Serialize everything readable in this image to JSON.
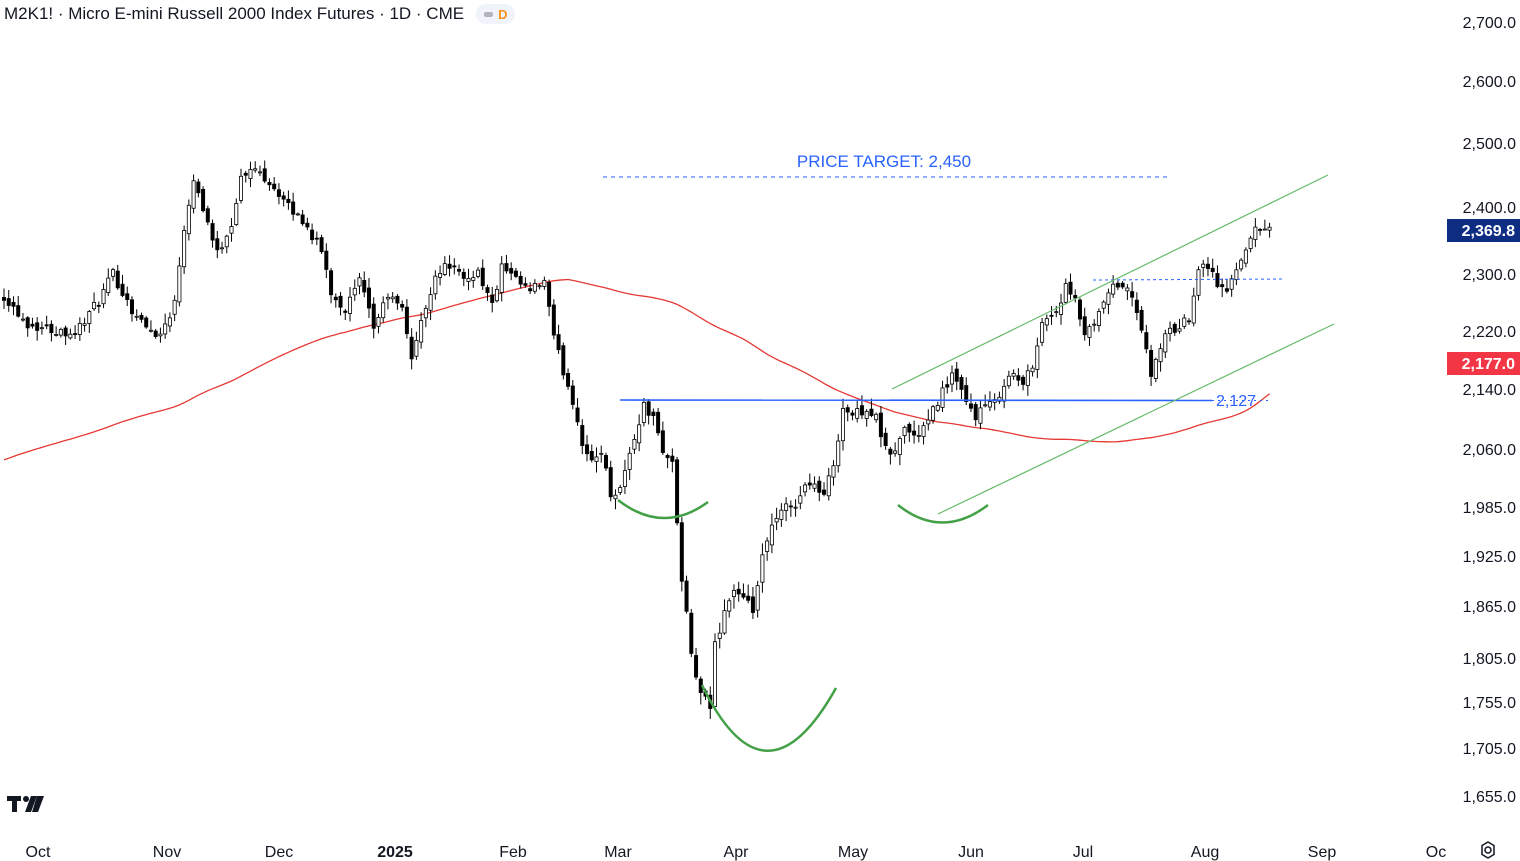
{
  "header": {
    "title": "M2K1! · Micro E-mini Russell 2000 Index Futures · 1D · CME",
    "badge_letter": "D"
  },
  "chart_data": {
    "type": "candlestick",
    "symbol": "M2K1!",
    "interval": "1D",
    "exchange": "CME",
    "y_ticks": [
      2700,
      2600,
      2500,
      2400,
      2300,
      2220,
      2140,
      2060,
      1985,
      1925,
      1865,
      1805,
      1755,
      1705,
      1655
    ],
    "y_tick_labels": [
      "2,700.0",
      "2,600.0",
      "2,500.0",
      "2,400.0",
      "2,300.0",
      "2,220.0",
      "2,140.0",
      "2,060.0",
      "1,985.0",
      "1,925.0",
      "1,865.0",
      "1,805.0",
      "1,755.0",
      "1,705.0",
      "1,655.0"
    ],
    "x_labels": [
      "Oct",
      "Nov",
      "Dec",
      "2025",
      "Feb",
      "Mar",
      "Apr",
      "May",
      "Jun",
      "Jul",
      "Aug",
      "Sep",
      "Oc"
    ],
    "last_price": 2369.8,
    "last_price_label": "2,369.8",
    "ma_value": 2177.0,
    "ma_label": "2,177.0",
    "neckline": {
      "value": 2127,
      "label": "2,127"
    },
    "price_target": {
      "value": 2450,
      "label": "PRICE TARGET: 2,450"
    },
    "pattern": "inverse head and shoulders",
    "colors": {
      "up": "#ffffff",
      "down": "#000000",
      "ma": "#e53935",
      "neckline": "#2962ff",
      "channel": "#66bb6a",
      "pattern": "#43a047",
      "last_price_bg": "#0d2c82",
      "ma_bg": "#f23645"
    },
    "anchors": [
      [
        0,
        2270
      ],
      [
        5,
        2230
      ],
      [
        10,
        2222
      ],
      [
        15,
        2218
      ],
      [
        20,
        2262
      ],
      [
        23,
        2300
      ],
      [
        27,
        2250
      ],
      [
        30,
        2225
      ],
      [
        33,
        2215
      ],
      [
        36,
        2260
      ],
      [
        38,
        2370
      ],
      [
        40,
        2445
      ],
      [
        42,
        2400
      ],
      [
        45,
        2330
      ],
      [
        48,
        2375
      ],
      [
        50,
        2445
      ],
      [
        53,
        2460
      ],
      [
        56,
        2440
      ],
      [
        60,
        2400
      ],
      [
        63,
        2380
      ],
      [
        67,
        2335
      ],
      [
        69,
        2275
      ],
      [
        72,
        2250
      ],
      [
        75,
        2290
      ],
      [
        78,
        2225
      ],
      [
        81,
        2270
      ],
      [
        84,
        2250
      ],
      [
        86,
        2185
      ],
      [
        88,
        2230
      ],
      [
        91,
        2300
      ],
      [
        94,
        2315
      ],
      [
        97,
        2290
      ],
      [
        100,
        2305
      ],
      [
        103,
        2255
      ],
      [
        105,
        2310
      ],
      [
        108,
        2290
      ],
      [
        111,
        2275
      ],
      [
        114,
        2290
      ],
      [
        116,
        2210
      ],
      [
        118,
        2165
      ],
      [
        120,
        2125
      ],
      [
        122,
        2070
      ],
      [
        124,
        2040
      ],
      [
        126,
        2060
      ],
      [
        128,
        2002
      ],
      [
        130,
        2010
      ],
      [
        133,
        2075
      ],
      [
        135,
        2118
      ],
      [
        137,
        2100
      ],
      [
        139,
        2060
      ],
      [
        141,
        2040
      ],
      [
        143,
        1895
      ],
      [
        145,
        1810
      ],
      [
        147,
        1760
      ],
      [
        149,
        1750
      ],
      [
        150,
        1820
      ],
      [
        152,
        1860
      ],
      [
        154,
        1885
      ],
      [
        156,
        1870
      ],
      [
        158,
        1860
      ],
      [
        160,
        1920
      ],
      [
        162,
        1960
      ],
      [
        165,
        1985
      ],
      [
        167,
        1990
      ],
      [
        170,
        2020
      ],
      [
        173,
        2000
      ],
      [
        175,
        2040
      ],
      [
        177,
        2115
      ],
      [
        179,
        2105
      ],
      [
        182,
        2115
      ],
      [
        184,
        2100
      ],
      [
        186,
        2058
      ],
      [
        188,
        2055
      ],
      [
        190,
        2090
      ],
      [
        192,
        2075
      ],
      [
        195,
        2095
      ],
      [
        197,
        2125
      ],
      [
        200,
        2160
      ],
      [
        203,
        2120
      ],
      [
        205,
        2105
      ],
      [
        207,
        2118
      ],
      [
        209,
        2120
      ],
      [
        211,
        2150
      ],
      [
        213,
        2160
      ],
      [
        215,
        2145
      ],
      [
        217,
        2175
      ],
      [
        219,
        2232
      ],
      [
        222,
        2248
      ],
      [
        224,
        2280
      ],
      [
        226,
        2260
      ],
      [
        228,
        2215
      ],
      [
        230,
        2225
      ],
      [
        232,
        2260
      ],
      [
        234,
        2280
      ],
      [
        236,
        2285
      ],
      [
        238,
        2265
      ],
      [
        240,
        2225
      ],
      [
        242,
        2155
      ],
      [
        244,
        2200
      ],
      [
        246,
        2220
      ],
      [
        248,
        2225
      ],
      [
        250,
        2240
      ],
      [
        252,
        2310
      ],
      [
        254,
        2315
      ],
      [
        256,
        2285
      ],
      [
        258,
        2275
      ],
      [
        260,
        2310
      ],
      [
        262,
        2340
      ],
      [
        264,
        2365
      ],
      [
        266,
        2372
      ],
      [
        267,
        2369.8
      ]
    ]
  }
}
